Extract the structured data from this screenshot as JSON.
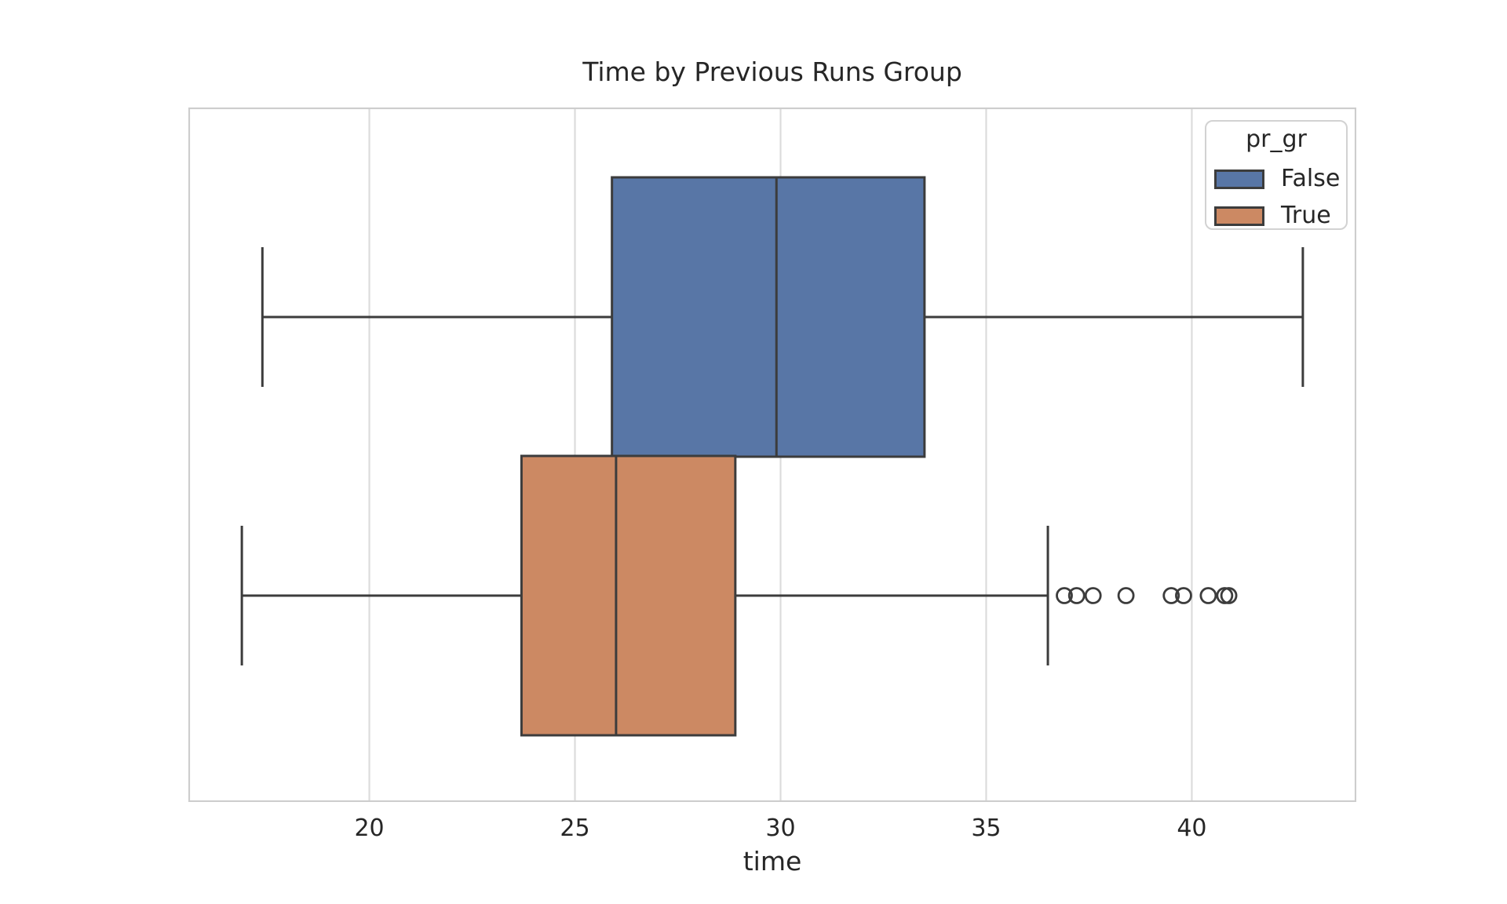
{
  "figure": {
    "title": "Time by Previous Runs Group",
    "xlabel": "time"
  },
  "legend": {
    "title": "pr_gr",
    "entries": [
      {
        "label": "False",
        "color": "#5876A6"
      },
      {
        "label": "True",
        "color": "#CC8963"
      }
    ]
  },
  "style": {
    "edge_color": "#3C3C3C",
    "grid_color": "#DCDCDC",
    "frame_color": "#CDCDCD",
    "text_color": "#262626",
    "background": "#FFFFFF"
  },
  "chart_data": {
    "type": "boxplot_horizontal",
    "title": "Time by Previous Runs Group",
    "xlabel": "time",
    "ylabel": "",
    "xlim": [
      15.6,
      44.0
    ],
    "xticks": [
      20,
      25,
      30,
      35,
      40
    ],
    "grid": "vertical-only",
    "legend_title": "pr_gr",
    "legend_position": "upper-right",
    "series": [
      {
        "name": "False",
        "color": "#5876A6",
        "whisker_low": 17.4,
        "q1": 25.9,
        "median": 29.9,
        "q3": 33.5,
        "whisker_high": 42.7,
        "outliers": []
      },
      {
        "name": "True",
        "color": "#CC8963",
        "whisker_low": 16.9,
        "q1": 23.7,
        "median": 26.0,
        "q3": 28.9,
        "whisker_high": 36.5,
        "outliers": [
          36.9,
          37.2,
          37.6,
          38.4,
          39.5,
          39.8,
          40.4,
          40.8,
          40.9
        ]
      }
    ]
  }
}
